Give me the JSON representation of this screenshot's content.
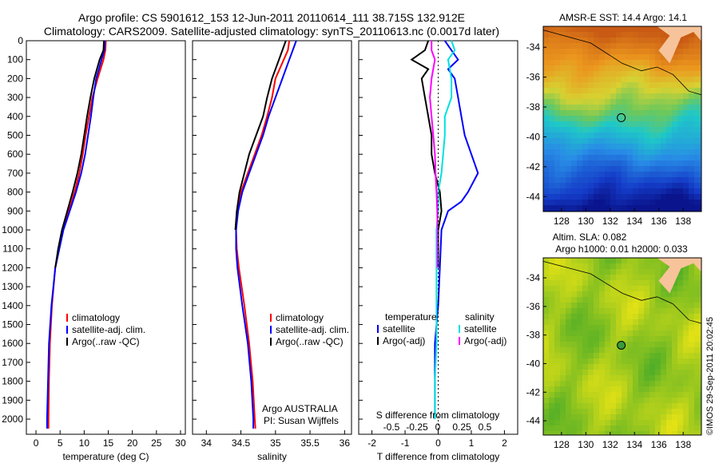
{
  "header": {
    "line1": "Argo profile: CS 5901612_153 12-Jun-2011 20110614_111 38.715S 132.912E",
    "line2": "Climatology: CARS2009. Satellite-adjusted climatology: synTS_20110613.nc (0.0017d later)"
  },
  "colors": {
    "climatology": "#ff0000",
    "satellite": "#0000ff",
    "argo": "#000000",
    "sat_salinity": "#00e0e0",
    "argo_salinity": "#ff00ff"
  },
  "chart_data": [
    {
      "type": "line",
      "xlabel": "temperature (deg C)",
      "ylabel": "",
      "xlim": [
        -2,
        31
      ],
      "ylim": [
        2080,
        0
      ],
      "xticks": [
        0,
        5,
        10,
        15,
        20,
        25,
        30
      ],
      "yticks": [
        0,
        100,
        200,
        300,
        400,
        500,
        600,
        700,
        800,
        900,
        1000,
        1100,
        1200,
        1300,
        1400,
        1500,
        1600,
        1700,
        1800,
        1900,
        2000
      ],
      "legend": [
        "climatology",
        "satellite-adj. clim.",
        "Argo(..raw -QC)"
      ],
      "series": [
        {
          "name": "climatology",
          "color": "#ff0000",
          "depth": [
            0,
            50,
            100,
            200,
            300,
            400,
            500,
            600,
            700,
            800,
            900,
            1000,
            1200,
            1400,
            1600,
            1800,
            2000,
            2050
          ],
          "values": [
            14.5,
            14.4,
            14.0,
            12.8,
            11.7,
            11.0,
            10.3,
            9.7,
            9.0,
            8.0,
            6.8,
            5.6,
            4.0,
            3.3,
            2.9,
            2.7,
            2.6,
            2.6
          ]
        },
        {
          "name": "satellite-adj. clim.",
          "color": "#0000ff",
          "depth": [
            0,
            50,
            100,
            200,
            300,
            400,
            500,
            600,
            700,
            800,
            900,
            1000,
            1200,
            1400,
            1600,
            1800,
            2000,
            2050
          ],
          "values": [
            14.3,
            14.2,
            13.6,
            12.5,
            11.9,
            11.4,
            10.8,
            10.2,
            9.4,
            8.3,
            7.0,
            5.7,
            4.0,
            3.2,
            2.7,
            2.5,
            2.3,
            2.3
          ]
        },
        {
          "name": "Argo(..raw -QC)",
          "color": "#000000",
          "depth": [
            0,
            50,
            100,
            200,
            300,
            400,
            500,
            600,
            700,
            800,
            900,
            1000,
            1100,
            1200
          ],
          "values": [
            14.1,
            14.0,
            13.2,
            12.1,
            11.3,
            10.6,
            10.0,
            9.4,
            8.6,
            7.6,
            6.5,
            5.4,
            4.6,
            4.0
          ]
        }
      ]
    },
    {
      "type": "line",
      "xlabel": "salinity",
      "xlim": [
        33.8,
        36.1
      ],
      "ylim": [
        2080,
        0
      ],
      "xticks": [
        34,
        34.5,
        35,
        35.5,
        36
      ],
      "legend": [
        "climatology",
        "satellite-adj. clim.",
        "Argo(..raw -QC)"
      ],
      "annotation": [
        "Argo AUSTRALIA",
        "PI: Susan Wijffels"
      ],
      "series": [
        {
          "name": "climatology",
          "color": "#ff0000",
          "depth": [
            0,
            50,
            100,
            200,
            300,
            400,
            500,
            600,
            700,
            800,
            900,
            1000,
            1100,
            1200,
            1400,
            1600,
            1800,
            2000,
            2050
          ],
          "values": [
            35.2,
            35.18,
            35.12,
            35.0,
            34.95,
            34.88,
            34.8,
            34.7,
            34.6,
            34.5,
            34.45,
            34.43,
            34.44,
            34.47,
            34.55,
            34.62,
            34.67,
            34.7,
            34.71
          ]
        },
        {
          "name": "satellite-adj. clim.",
          "color": "#0000ff",
          "depth": [
            0,
            50,
            100,
            200,
            300,
            400,
            500,
            600,
            700,
            800,
            900,
            1000,
            1100,
            1200,
            1400,
            1600,
            1800,
            2000,
            2050
          ],
          "values": [
            35.3,
            35.25,
            35.2,
            35.1,
            35.0,
            34.9,
            34.82,
            34.72,
            34.62,
            34.52,
            34.46,
            34.43,
            34.43,
            34.45,
            34.52,
            34.6,
            34.65,
            34.68,
            34.68
          ]
        },
        {
          "name": "Argo(..raw -QC)",
          "color": "#000000",
          "depth": [
            0,
            50,
            100,
            200,
            300,
            400,
            500,
            600,
            700,
            800,
            900,
            1000
          ],
          "values": [
            35.15,
            35.1,
            35.05,
            34.95,
            34.88,
            34.82,
            34.72,
            34.62,
            34.55,
            34.48,
            34.44,
            34.42
          ]
        }
      ]
    },
    {
      "type": "line",
      "xlabel": "T difference from climatology",
      "top_label": "S difference from climatology",
      "xlim": [
        -2.4,
        2.4
      ],
      "ylim": [
        2080,
        0
      ],
      "xticks": [
        -2,
        -1,
        0,
        1,
        2
      ],
      "top_ticks": [
        "-0.5",
        "-0.25",
        "0",
        "0.25",
        "0.5"
      ],
      "legend_temperature_title": "temperature",
      "legend_salinity_title": "salinity",
      "legend_temperature": [
        "satellite",
        "Argo(-adj)"
      ],
      "legend_salinity": [
        "satellite",
        "Argo(-adj)"
      ],
      "series": [
        {
          "name": "satellite",
          "color": "#0000ff",
          "depth": [
            0,
            50,
            100,
            150,
            200,
            300,
            400,
            500,
            600,
            700,
            800,
            850,
            900,
            1000,
            1200,
            1400,
            1600,
            1800,
            2000
          ],
          "values": [
            0.2,
            0.4,
            0.6,
            0.3,
            0.5,
            0.6,
            0.7,
            0.8,
            1.0,
            1.2,
            0.9,
            0.7,
            0.3,
            0.1,
            0.05,
            0.0,
            -0.1,
            -0.1,
            -0.1
          ]
        },
        {
          "name": "Argo(-adj)",
          "color": "#000000",
          "depth": [
            0,
            50,
            100,
            150,
            200,
            300,
            400,
            500,
            600,
            700,
            800,
            900,
            1000,
            1100,
            1200
          ],
          "values": [
            -0.3,
            -0.4,
            -0.8,
            -0.3,
            -0.5,
            -0.4,
            -0.3,
            -0.2,
            -0.2,
            -0.1,
            0.05,
            0.1,
            0.0,
            0.0,
            0.0
          ]
        },
        {
          "name": "satellite",
          "color": "#00e0e0",
          "depth": [
            0,
            50,
            100,
            200,
            300,
            400,
            500,
            600,
            700,
            800,
            900,
            1000,
            1200,
            1400,
            1600,
            1800,
            2000
          ],
          "values": [
            0.4,
            0.5,
            0.3,
            0.4,
            0.4,
            0.2,
            0.2,
            0.15,
            0.1,
            0.0,
            0.0,
            -0.05,
            -0.05,
            -0.05,
            -0.05,
            -0.1,
            -0.1
          ]
        },
        {
          "name": "Argo(-adj)",
          "color": "#ff00ff",
          "depth": [
            0,
            50,
            100,
            200,
            300,
            400,
            500,
            600,
            700,
            800,
            900,
            1000,
            1100,
            1200
          ],
          "values": [
            -0.2,
            -0.2,
            -0.1,
            -0.2,
            -0.25,
            -0.2,
            -0.15,
            -0.1,
            -0.08,
            -0.05,
            -0.03,
            -0.02,
            -0.02,
            -0.02
          ]
        }
      ]
    },
    {
      "type": "heatmap",
      "title": "AMSR-E SST: 14.4  Argo: 14.1",
      "xticks": [
        128,
        130,
        132,
        134,
        136,
        138
      ],
      "yticks": [
        -34,
        -36,
        -38,
        -40,
        -42,
        -44
      ],
      "xlim": [
        126.5,
        139.5
      ],
      "ylim": [
        -45,
        -32.6
      ],
      "marker": {
        "lon": 132.912,
        "lat": -38.715
      }
    },
    {
      "type": "heatmap",
      "title_line1": "Altim. SLA: 0.082",
      "title_line2": "Argo h1000: 0.01 h2000: 0.033",
      "xticks": [
        128,
        130,
        132,
        134,
        136,
        138
      ],
      "yticks": [
        -34,
        -36,
        -38,
        -40,
        -42,
        -44
      ],
      "xlim": [
        126.5,
        139.5
      ],
      "ylim": [
        -45,
        -32.6
      ],
      "marker": {
        "lon": 132.912,
        "lat": -38.715
      }
    }
  ],
  "footer": {
    "credit": "©IMOS 29-Sep-2011 20:02:45"
  }
}
